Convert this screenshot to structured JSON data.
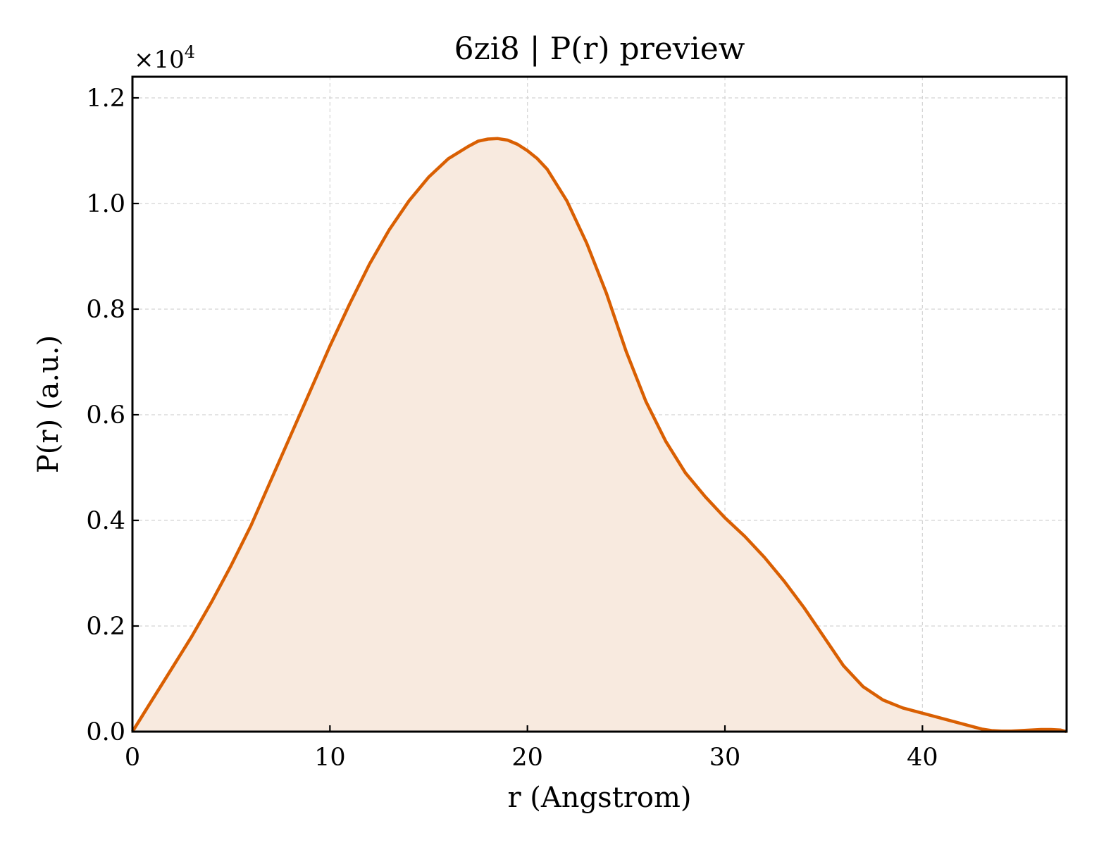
{
  "chart_data": {
    "type": "area",
    "title": "6zi8 | P(r) preview",
    "xlabel": "r (Angstrom)",
    "ylabel": "P(r) (a.u.)",
    "y_offset_text": {
      "base": "×10",
      "exponent": "4"
    },
    "xlim": [
      0,
      47.3
    ],
    "ylim": [
      0,
      1.24
    ],
    "xticks": [
      0,
      10,
      20,
      30,
      40
    ],
    "xtick_labels": [
      "0",
      "10",
      "20",
      "30",
      "40"
    ],
    "yticks": [
      0.0,
      0.2,
      0.4,
      0.6,
      0.8,
      1.0,
      1.2
    ],
    "ytick_labels": [
      "0.0",
      "0.2",
      "0.4",
      "0.6",
      "0.8",
      "1.0",
      "1.2"
    ],
    "grid": true,
    "colors": {
      "line": "#d95f02",
      "fill": "#f8eadf"
    },
    "series": [
      {
        "x": [
          0,
          0.5,
          1,
          2,
          3,
          4,
          5,
          6,
          7,
          8,
          9,
          10,
          11,
          12,
          13,
          14,
          15,
          16,
          17,
          17.5,
          18,
          18.5,
          19,
          19.5,
          20,
          20.5,
          21,
          22,
          23,
          24,
          25,
          26,
          27,
          28,
          29,
          30,
          31,
          32,
          33,
          34,
          35,
          36,
          37,
          38,
          39,
          40,
          41,
          42,
          43,
          43.5,
          44,
          44.5,
          45,
          45.5,
          46,
          46.5,
          47,
          47.3
        ],
        "y": [
          0,
          0.03,
          0.06,
          0.12,
          0.18,
          0.245,
          0.315,
          0.39,
          0.475,
          0.56,
          0.645,
          0.73,
          0.81,
          0.885,
          0.95,
          1.005,
          1.05,
          1.085,
          1.108,
          1.118,
          1.122,
          1.123,
          1.12,
          1.112,
          1.1,
          1.085,
          1.065,
          1.005,
          0.925,
          0.83,
          0.72,
          0.625,
          0.55,
          0.49,
          0.445,
          0.405,
          0.37,
          0.33,
          0.285,
          0.235,
          0.18,
          0.125,
          0.085,
          0.06,
          0.045,
          0.035,
          0.025,
          0.015,
          0.005,
          0.002,
          0.001,
          0.001,
          0.002,
          0.003,
          0.004,
          0.004,
          0.003,
          0.0
        ]
      }
    ]
  }
}
